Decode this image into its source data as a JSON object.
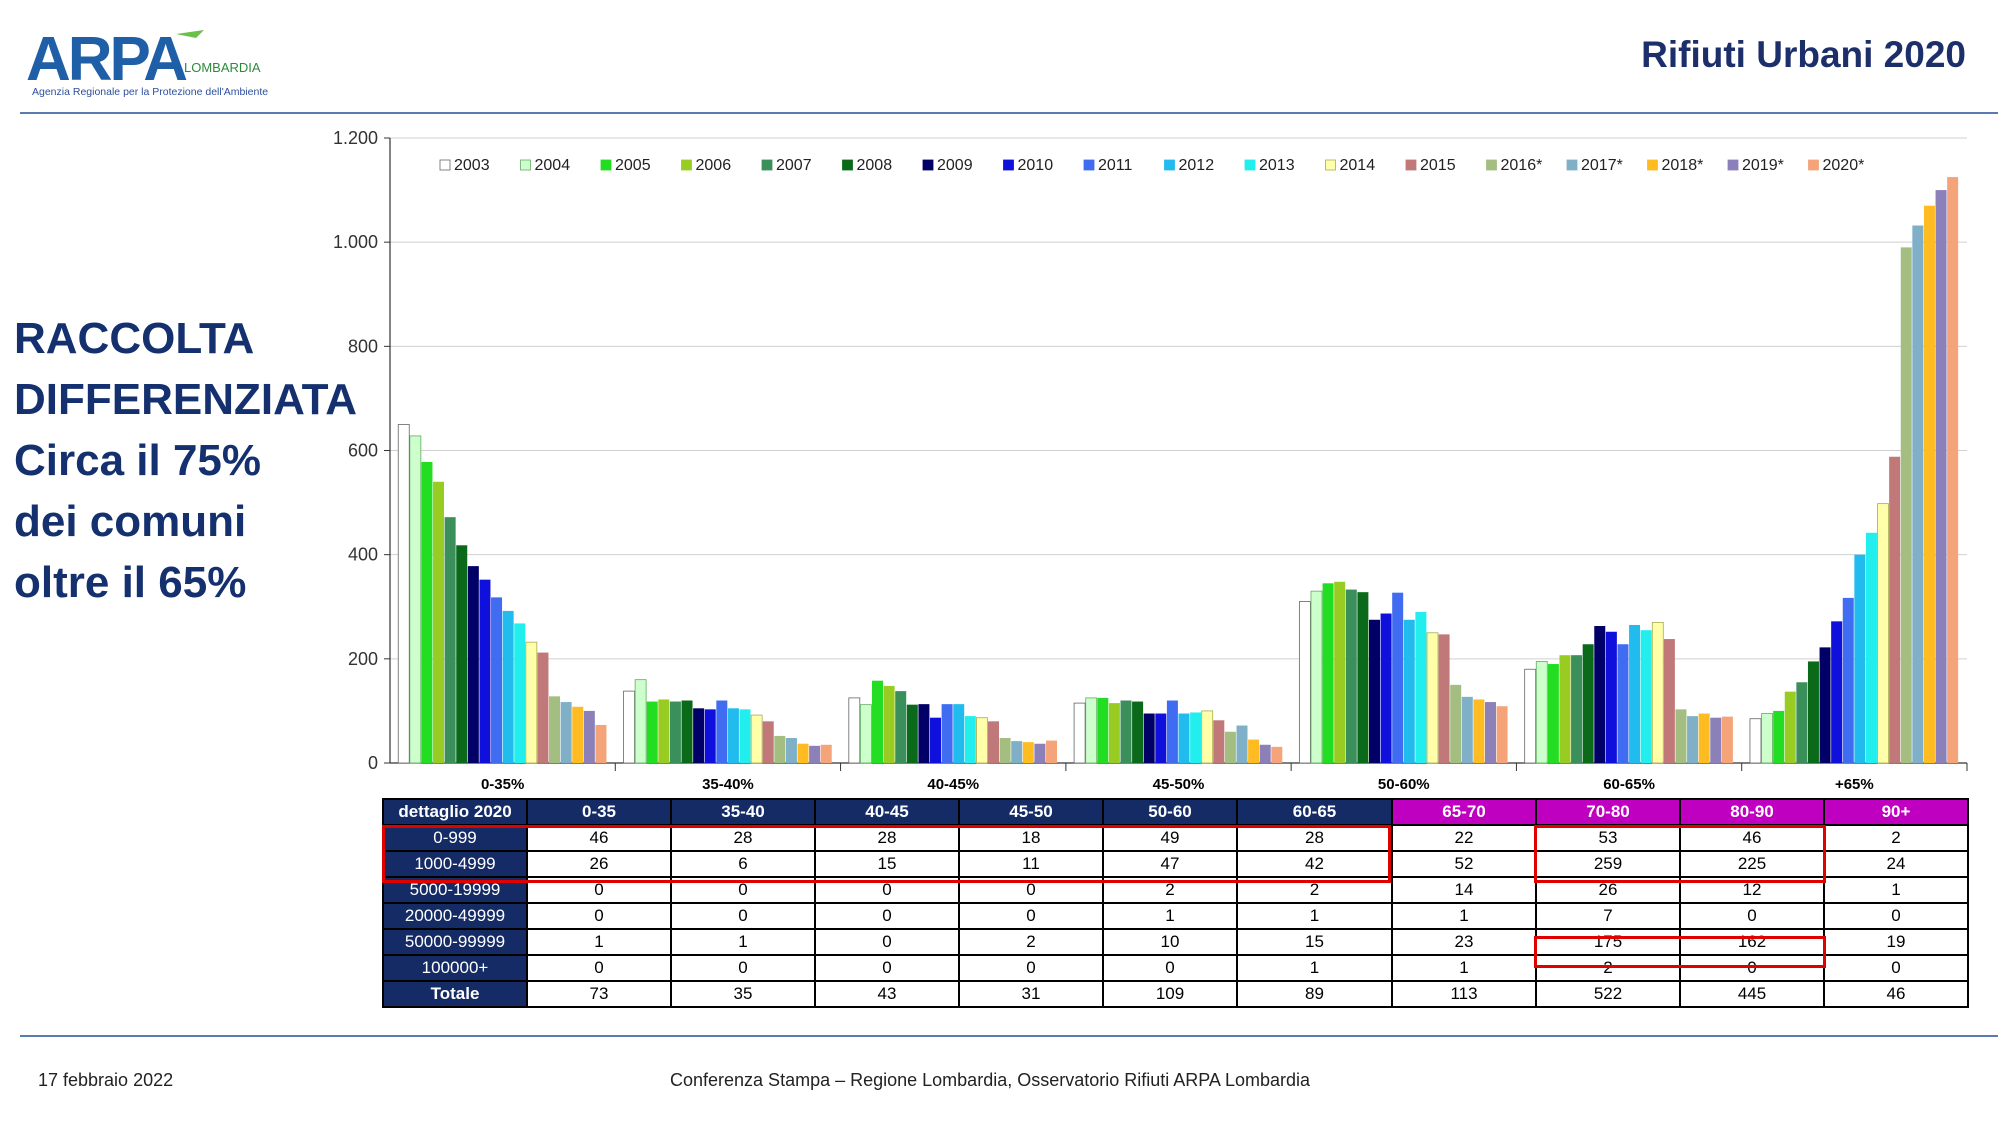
{
  "header": {
    "logo_text": "ARPA",
    "logo_region": "LOMBARDIA",
    "logo_subtitle": "Agenzia Regionale per la Protezione dell'Ambiente",
    "title": "Rifiuti Urbani 2020"
  },
  "left_text": [
    "RACCOLTA",
    "DIFFERENZIATA",
    "Circa il 75%",
    "dei comuni",
    "oltre il 65%"
  ],
  "colors": {
    "navy": "#142b66",
    "magenta": "#c000c0",
    "highlight": "#e00000",
    "rule": "#5b7ab0"
  },
  "chart_data": {
    "type": "bar",
    "title": "",
    "xlabel": "",
    "ylabel": "",
    "ylim": [
      0,
      1200
    ],
    "yticks": [
      0,
      200,
      400,
      600,
      800,
      1000,
      1200
    ],
    "ytick_labels": [
      "0",
      "200",
      "400",
      "600",
      "800",
      "1.000",
      "1.200"
    ],
    "grid": true,
    "legend_position": "top",
    "categories": [
      "0-35%",
      "35-40%",
      "40-45%",
      "45-50%",
      "50-60%",
      "60-65%",
      "+65%"
    ],
    "series": [
      {
        "name": "2003",
        "color": "#ffffff",
        "stroke": "#666666",
        "values": [
          650,
          138,
          125,
          115,
          310,
          180,
          85
        ]
      },
      {
        "name": "2004",
        "color": "#ccffcc",
        "stroke": "#66aa66",
        "values": [
          628,
          160,
          112,
          125,
          330,
          195,
          95
        ]
      },
      {
        "name": "2005",
        "color": "#22dd22",
        "values": [
          578,
          118,
          158,
          125,
          345,
          190,
          100
        ]
      },
      {
        "name": "2006",
        "color": "#99cc22",
        "values": [
          540,
          122,
          148,
          115,
          348,
          207,
          137
        ]
      },
      {
        "name": "2007",
        "color": "#3a8f5a",
        "values": [
          472,
          118,
          138,
          120,
          333,
          207,
          155
        ]
      },
      {
        "name": "2008",
        "color": "#0a6a1a",
        "values": [
          418,
          120,
          112,
          118,
          328,
          228,
          195
        ]
      },
      {
        "name": "2009",
        "color": "#000066",
        "values": [
          378,
          105,
          113,
          95,
          275,
          263,
          222
        ]
      },
      {
        "name": "2010",
        "color": "#1010dd",
        "values": [
          352,
          103,
          87,
          95,
          287,
          252,
          272
        ]
      },
      {
        "name": "2011",
        "color": "#3f6cf0",
        "values": [
          318,
          120,
          113,
          120,
          327,
          228,
          317
        ]
      },
      {
        "name": "2012",
        "color": "#22bbee",
        "values": [
          292,
          105,
          113,
          95,
          275,
          265,
          400
        ]
      },
      {
        "name": "2013",
        "color": "#22eeee",
        "values": [
          268,
          103,
          90,
          97,
          290,
          255,
          442
        ]
      },
      {
        "name": "2014",
        "color": "#ffffaa",
        "stroke": "#aaaa55",
        "values": [
          232,
          92,
          87,
          100,
          250,
          270,
          498
        ]
      },
      {
        "name": "2015",
        "color": "#c07878",
        "values": [
          212,
          80,
          80,
          82,
          247,
          238,
          588
        ]
      },
      {
        "name": "2016*",
        "color": "#a4be82",
        "values": [
          128,
          52,
          48,
          60,
          150,
          103,
          990
        ]
      },
      {
        "name": "2017*",
        "color": "#7fb0c8",
        "values": [
          117,
          48,
          42,
          72,
          127,
          90,
          1032
        ]
      },
      {
        "name": "2018*",
        "color": "#ffbb22",
        "values": [
          108,
          37,
          40,
          45,
          122,
          95,
          1070
        ]
      },
      {
        "name": "2019*",
        "color": "#8c80b8",
        "values": [
          100,
          33,
          37,
          35,
          117,
          87,
          1100
        ]
      },
      {
        "name": "2020*",
        "color": "#f4a478",
        "values": [
          73,
          35,
          43,
          31,
          109,
          89,
          1125
        ]
      }
    ]
  },
  "table": {
    "corner": "dettaglio 2020",
    "columns": [
      "0-35",
      "35-40",
      "40-45",
      "45-50",
      "50-60",
      "60-65",
      "65-70",
      "70-80",
      "80-90",
      "90+"
    ],
    "magenta_from": 6,
    "rows": [
      {
        "label": "0-999",
        "values": [
          "46",
          "28",
          "28",
          "18",
          "49",
          "28",
          "22",
          "53",
          "46",
          "2"
        ]
      },
      {
        "label": "1000-4999",
        "values": [
          "26",
          "6",
          "15",
          "11",
          "47",
          "42",
          "52",
          "259",
          "225",
          "24"
        ]
      },
      {
        "label": "5000-19999",
        "values": [
          "0",
          "0",
          "0",
          "0",
          "2",
          "2",
          "14",
          "26",
          "12",
          "1"
        ]
      },
      {
        "label": "20000-49999",
        "values": [
          "0",
          "0",
          "0",
          "0",
          "1",
          "1",
          "1",
          "7",
          "0",
          "0"
        ]
      },
      {
        "label": "50000-99999",
        "values": [
          "1",
          "1",
          "0",
          "2",
          "10",
          "15",
          "23",
          "175",
          "162",
          "19"
        ]
      },
      {
        "label": "100000+",
        "values": [
          "0",
          "0",
          "0",
          "0",
          "0",
          "1",
          "1",
          "2",
          "0",
          "0"
        ]
      },
      {
        "label": "Totale",
        "values": [
          "73",
          "35",
          "43",
          "31",
          "109",
          "89",
          "113",
          "522",
          "445",
          "46"
        ]
      }
    ]
  },
  "footer": {
    "date": "17 febbraio 2022",
    "center": "Conferenza Stampa – Regione Lombardia, Osservatorio Rifiuti  ARPA Lombardia"
  }
}
